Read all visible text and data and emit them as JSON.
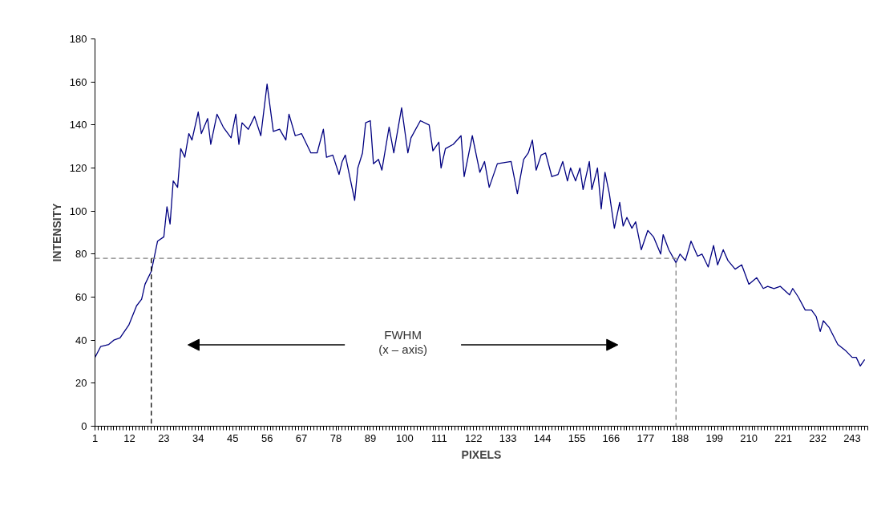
{
  "chart_data": {
    "type": "line",
    "xlabel": "PIXELS",
    "ylabel": "INTENSITY",
    "xlim": [
      1,
      248
    ],
    "ylim": [
      0,
      180
    ],
    "xticks": [
      1,
      12,
      23,
      34,
      45,
      56,
      67,
      78,
      89,
      100,
      111,
      122,
      133,
      144,
      155,
      166,
      177,
      188,
      199,
      210,
      221,
      232,
      243
    ],
    "yticks": [
      0,
      20,
      40,
      60,
      80,
      100,
      120,
      140,
      160,
      180
    ],
    "grid": false,
    "marker": "none",
    "annotations": [
      "FWHM\n(x – axis)"
    ],
    "series": [
      {
        "color": "#000080",
        "line_style": "solid",
        "x": [
          1,
          2.8,
          5.4,
          7,
          9,
          11.8,
          14.3,
          15.9,
          17,
          19,
          20,
          21,
          23,
          24,
          25,
          26,
          27.4,
          28.4,
          29.7,
          31,
          32,
          34,
          35,
          37,
          38,
          40,
          42,
          44.5,
          46,
          47,
          48,
          50,
          52,
          54,
          56,
          58,
          60,
          62,
          63,
          65,
          67,
          70,
          72,
          74,
          75,
          77,
          79,
          80,
          81,
          84,
          85,
          86.5,
          87.5,
          89,
          90,
          91.6,
          92.7,
          95,
          96.5,
          99,
          101,
          102,
          105,
          107.8,
          109,
          110.9,
          111.6,
          113,
          115.5,
          118,
          119,
          121.6,
          124,
          125.5,
          127,
          129.6,
          134,
          136,
          138,
          139.5,
          140.8,
          142,
          143.6,
          145,
          147,
          149,
          150.5,
          152,
          153,
          154.6,
          156,
          157,
          159,
          159.8,
          161.6,
          162.8,
          164,
          165.4,
          167,
          168.7,
          169.8,
          171,
          172.6,
          173.8,
          175.6,
          177.7,
          179.5,
          181.8,
          182.6,
          184.4,
          186.7,
          188,
          189.7,
          191.5,
          193.6,
          195,
          197,
          198.7,
          200,
          201.8,
          203.3,
          205.6,
          207.7,
          210,
          212.5,
          214.6,
          216,
          218,
          220,
          223,
          224,
          225.8,
          228,
          230,
          231.5,
          232.8,
          233.8,
          235.6,
          238.4,
          241,
          243,
          244.3,
          245.6,
          247
        ],
        "values": [
          32,
          37,
          38,
          40,
          41,
          47,
          56,
          59,
          66,
          72,
          79,
          86,
          88,
          102,
          94,
          114,
          111,
          129,
          125,
          136,
          133,
          146,
          136,
          143,
          131,
          145,
          139,
          134,
          145,
          131,
          141,
          138,
          144,
          135,
          159,
          137,
          138,
          133,
          145,
          135,
          136,
          127,
          127,
          138,
          125,
          126,
          117,
          123,
          126,
          105,
          120,
          127,
          141,
          142,
          122,
          124,
          119,
          139,
          127,
          148,
          127,
          134,
          142,
          140,
          128,
          132,
          120,
          129,
          131,
          135,
          116,
          135,
          118,
          123,
          111,
          122,
          123,
          108,
          124,
          127,
          133,
          119,
          126,
          127,
          116,
          117,
          123,
          114,
          120,
          114,
          120,
          110,
          123,
          110,
          120,
          101,
          118,
          108,
          92,
          104,
          93,
          97,
          92,
          95,
          82,
          91,
          88,
          80,
          89,
          82,
          76,
          80,
          77,
          86,
          79,
          80,
          74,
          84,
          75,
          82,
          77,
          73,
          75,
          66,
          69,
          64,
          65,
          64,
          65,
          61,
          64,
          60,
          54,
          54,
          51,
          44,
          49,
          46,
          38,
          35,
          32,
          32,
          28,
          31
        ]
      },
      {
        "color": "#808080",
        "line_style": "dashed",
        "x": [
          1,
          186.7,
          186.7
        ],
        "values": [
          78,
          78,
          0
        ]
      },
      {
        "color": "#000000",
        "line_style": "dashed",
        "x": [
          19,
          19
        ],
        "values": [
          78,
          0
        ]
      }
    ]
  }
}
